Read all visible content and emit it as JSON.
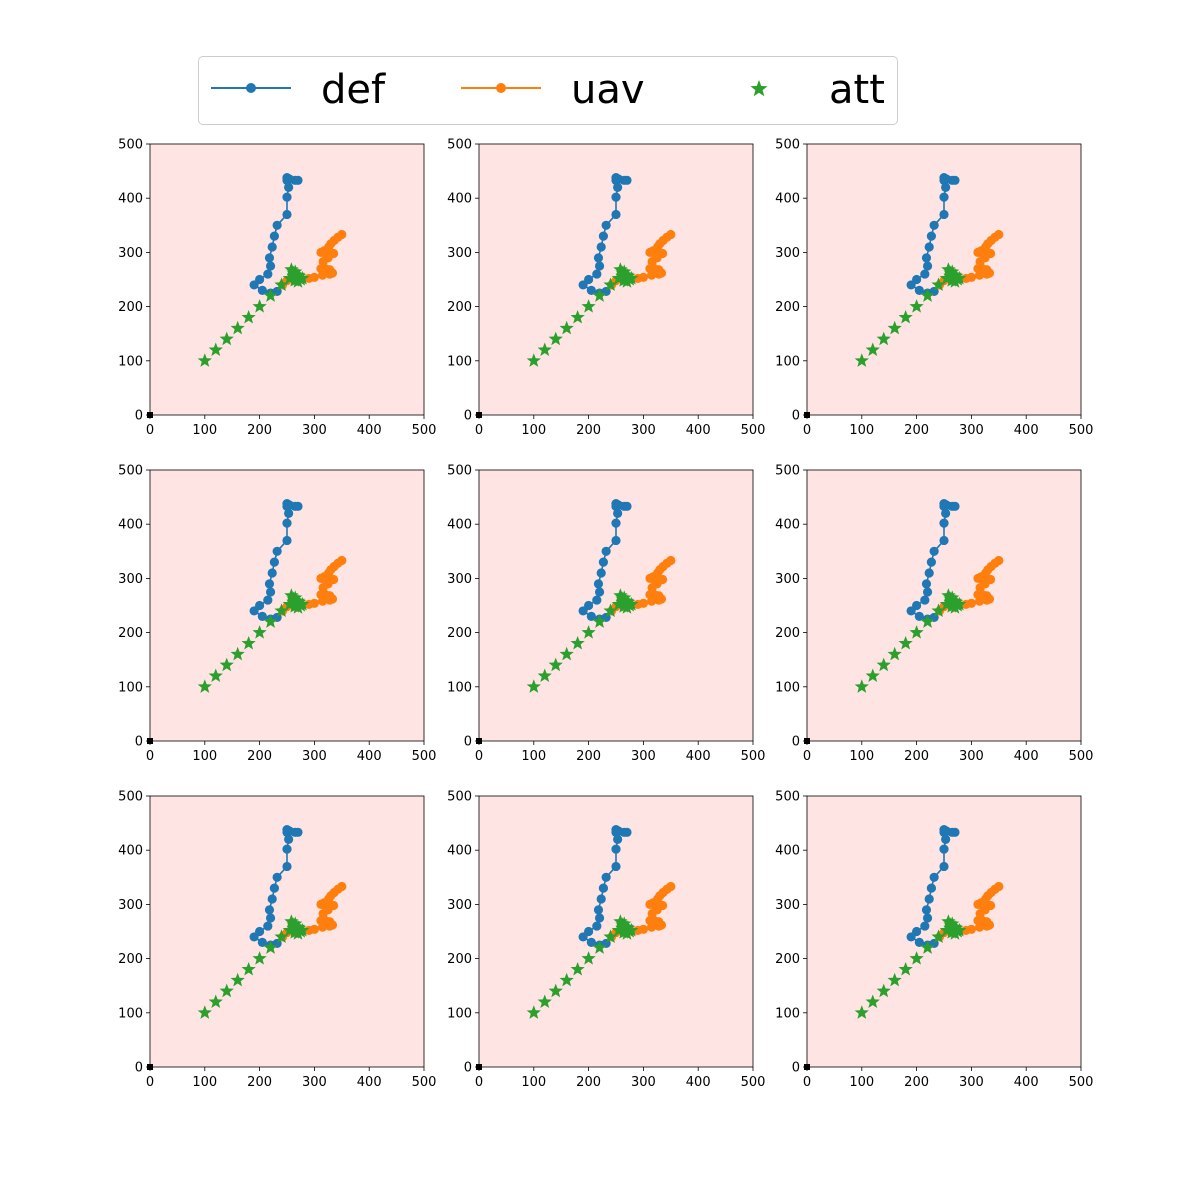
{
  "legend": {
    "placement": "top-center",
    "items": [
      {
        "label": "def",
        "color": "#1f77b4",
        "marker": "circle-line"
      },
      {
        "label": "uav",
        "color": "#ff7f0e",
        "marker": "circle-line"
      },
      {
        "label": "att",
        "color": "#2ca02c",
        "marker": "star"
      }
    ]
  },
  "chart_data": {
    "type": "scatter",
    "layout": "3x3 grid of identical subplots",
    "subplot_count": 9,
    "background_color": "#ffe4e4",
    "grid": false,
    "xlim": [
      0,
      500
    ],
    "ylim": [
      0,
      500
    ],
    "xticks": [
      "0",
      "100",
      "200",
      "300",
      "400",
      "500"
    ],
    "yticks": [
      "0",
      "100",
      "200",
      "300",
      "400",
      "500"
    ],
    "origin_marker": {
      "x": 0,
      "y": 0,
      "color": "#000000"
    },
    "series": [
      {
        "name": "def",
        "color": "#1f77b4",
        "style": "line+circle",
        "points": [
          [
            270,
            433
          ],
          [
            265,
            433
          ],
          [
            255,
            435
          ],
          [
            250,
            438
          ],
          [
            253,
            436
          ],
          [
            250,
            433
          ],
          [
            253,
            420
          ],
          [
            250,
            402
          ],
          [
            250,
            370
          ],
          [
            232,
            350
          ],
          [
            227,
            330
          ],
          [
            223,
            310
          ],
          [
            218,
            290
          ],
          [
            220,
            275
          ],
          [
            215,
            260
          ],
          [
            200,
            250
          ],
          [
            190,
            240
          ],
          [
            205,
            230
          ],
          [
            220,
            225
          ],
          [
            232,
            228
          ]
        ]
      },
      {
        "name": "uav",
        "color": "#ff7f0e",
        "style": "line+circle",
        "points": [
          [
            350,
            333
          ],
          [
            343,
            328
          ],
          [
            336,
            322
          ],
          [
            330,
            316
          ],
          [
            326,
            310
          ],
          [
            318,
            303
          ],
          [
            312,
            300
          ],
          [
            320,
            298
          ],
          [
            328,
            297
          ],
          [
            335,
            298
          ],
          [
            325,
            290
          ],
          [
            316,
            283
          ],
          [
            312,
            270
          ],
          [
            320,
            270
          ],
          [
            328,
            268
          ],
          [
            333,
            262
          ],
          [
            328,
            260
          ],
          [
            315,
            258
          ],
          [
            300,
            254
          ],
          [
            290,
            252
          ],
          [
            275,
            252
          ],
          [
            262,
            250
          ],
          [
            250,
            248
          ],
          [
            242,
            240
          ]
        ]
      },
      {
        "name": "att",
        "color": "#2ca02c",
        "style": "star",
        "points": [
          [
            100,
            100
          ],
          [
            120,
            120
          ],
          [
            140,
            140
          ],
          [
            160,
            160
          ],
          [
            180,
            180
          ],
          [
            200,
            200
          ],
          [
            220,
            220
          ],
          [
            240,
            240
          ],
          [
            255,
            252
          ],
          [
            262,
            262
          ],
          [
            258,
            268
          ],
          [
            265,
            264
          ],
          [
            270,
            258
          ],
          [
            262,
            256
          ],
          [
            268,
            250
          ],
          [
            275,
            250
          ],
          [
            272,
            256
          ],
          [
            278,
            252
          ],
          [
            270,
            246
          ],
          [
            264,
            248
          ]
        ]
      }
    ]
  }
}
